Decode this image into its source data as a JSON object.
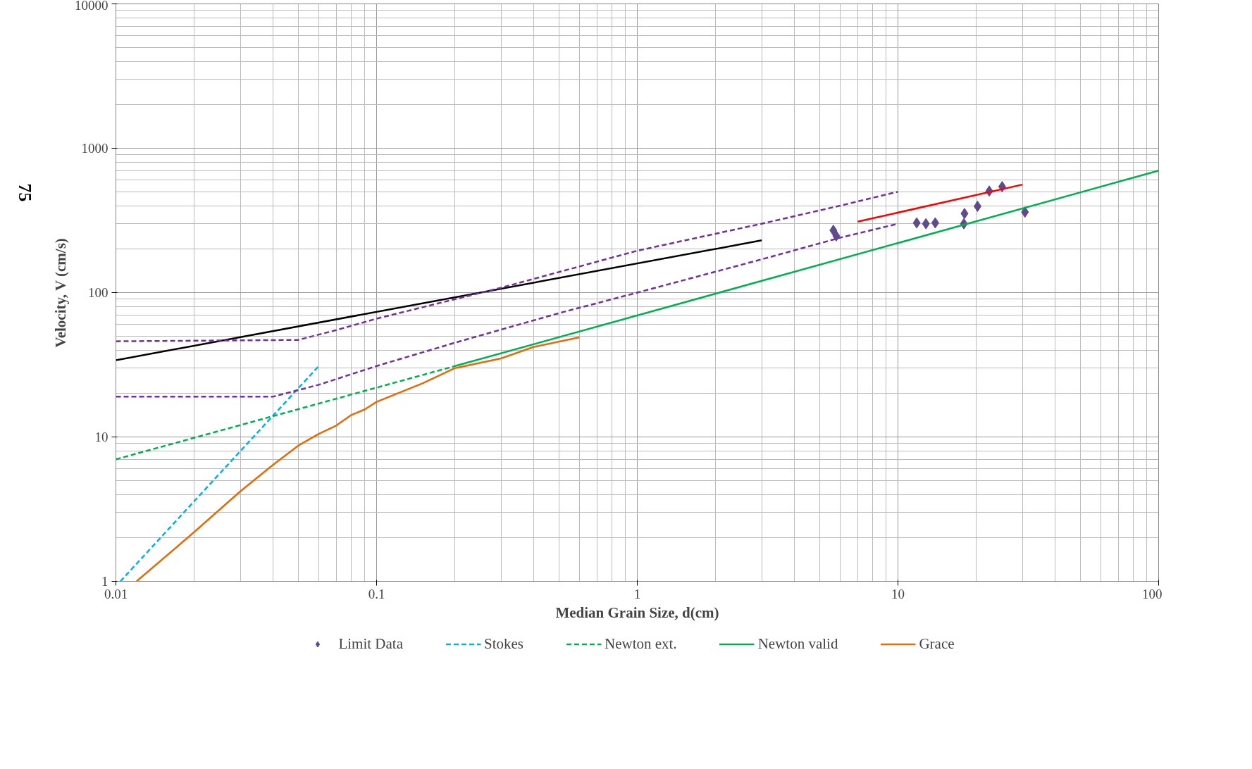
{
  "chart_data": {
    "type": "line",
    "xlabel": "Median Grain Size, d(cm)",
    "ylabel": "Velocity, V (cm/s)",
    "log": "xy",
    "grid": true,
    "legend": "bottom",
    "xlim": [
      0.01,
      100
    ],
    "xticks": [
      0.01,
      0.1,
      1,
      10,
      100
    ],
    "ylim": [
      1,
      10000
    ],
    "yticks": [
      1,
      10,
      100,
      1000,
      10000
    ],
    "annotations": [
      "75"
    ],
    "series": [
      {
        "name": "Limit Data",
        "type": "scatter",
        "marker": "diamond",
        "color": "#5f4b8b",
        "x": [
          5.65,
          5.8,
          11.8,
          12.8,
          13.9,
          17.9,
          18,
          20.2,
          22.4,
          25.1,
          30.7
        ],
        "values": [
          270,
          247,
          304,
          300,
          304,
          300,
          353,
          396,
          505,
          542,
          361
        ]
      },
      {
        "name": "Stokes",
        "line_style": "dashed",
        "color": "#00b0f0",
        "x": [
          0.0104,
          0.06
        ],
        "values": [
          1,
          31
        ]
      },
      {
        "name": "Newton ext.",
        "line_style": "dashed",
        "color": "#00b050",
        "x": [
          0.01,
          0.2
        ],
        "values": [
          7,
          31
        ]
      },
      {
        "name": "Newton valid",
        "line_style": "solid",
        "color": "#00b050",
        "x": [
          0.2,
          100
        ],
        "values": [
          31,
          700
        ]
      },
      {
        "name": "Grace",
        "line_style": "solid",
        "color": "#e36c09",
        "x": [
          0.012,
          0.02,
          0.03,
          0.04,
          0.05,
          0.06,
          0.07,
          0.08,
          0.09,
          0.1,
          0.15,
          0.2,
          0.3,
          0.4,
          0.6
        ],
        "values": [
          1,
          2.2,
          4.2,
          6.4,
          8.7,
          10.5,
          12,
          14.2,
          15.5,
          17.5,
          23.5,
          30,
          35,
          42,
          49
        ]
      },
      {
        "line_style": "solid",
        "color": "#000000",
        "x": [
          0.01,
          3
        ],
        "values": [
          34,
          230
        ]
      },
      {
        "line_style": "solid",
        "color": "#ff0000",
        "x": [
          7,
          30
        ],
        "values": [
          310,
          560
        ]
      },
      {
        "line_style": "dashed",
        "color": "#7030a0",
        "x": [
          0.01,
          0.05,
          0.07,
          0.1,
          0.3,
          1,
          3,
          6,
          10
        ],
        "values": [
          46,
          47,
          55,
          66,
          108,
          195,
          300,
          400,
          500
        ]
      },
      {
        "line_style": "dashed",
        "color": "#7030a0",
        "x": [
          0.01,
          0.04,
          0.06,
          0.1,
          0.2,
          0.5,
          1,
          3,
          6,
          10
        ],
        "values": [
          19,
          19,
          23,
          31,
          45,
          72,
          100,
          170,
          240,
          300
        ]
      }
    ]
  }
}
